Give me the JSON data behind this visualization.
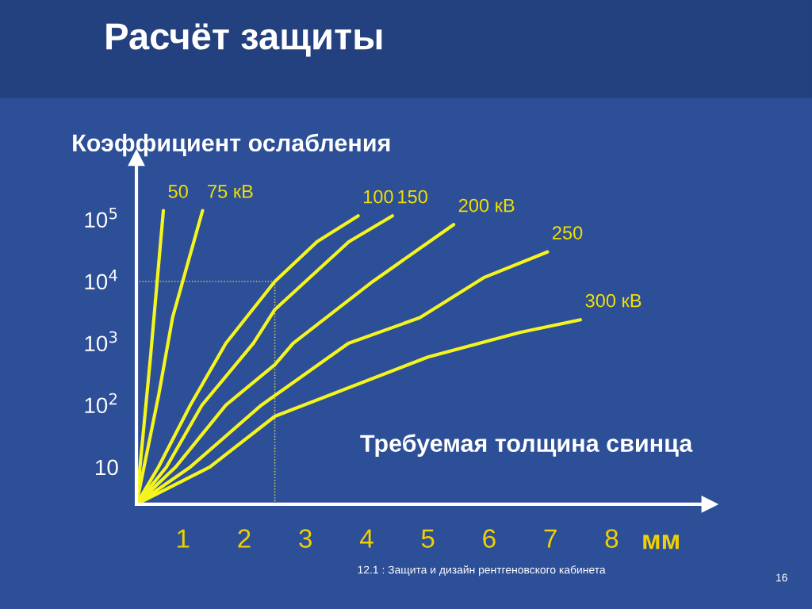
{
  "chart_data": {
    "type": "line",
    "title": "Расчёт защиты",
    "ylabel": "Коэффициент ослабления",
    "xlabel": "Требуемая толщина свинца",
    "log": "y",
    "xlim": [
      0.24,
      9.6
    ],
    "ylim": [
      2.5,
      1000000
    ],
    "xticks": [
      1,
      2,
      3,
      4,
      5,
      6,
      7,
      8
    ],
    "yticks": [
      10,
      {
        "value": 100,
        "label": "10$^{2}$"
      },
      {
        "value": 1000,
        "label": "10$^{3}$"
      },
      {
        "value": 10000,
        "label": "10$^{4}$"
      },
      {
        "value": 100000,
        "label": "10$^{5}$"
      }
    ],
    "grid": false,
    "line_style": "solid",
    "marker": "none",
    "ref_lines": [
      {
        "axis": "x",
        "value": 2.5,
        "color": "#e8e060",
        "line_style": "dotted"
      },
      {
        "axis": "y",
        "value": 10000,
        "color": "#e8e060",
        "line_style": "dotted"
      }
    ],
    "series": [
      {
        "name": "50",
        "color": "#f5f51e",
        "x": [
          0.24,
          0.47,
          0.68
        ],
        "values": [
          2.5,
          600,
          140000
        ]
      },
      {
        "name": "75 кВ",
        "color": "#f5f51e",
        "x": [
          0.24,
          0.6,
          0.83,
          1.32
        ],
        "values": [
          2.5,
          140,
          2600,
          140000
        ]
      },
      {
        "name": "100",
        "color": "#f5f51e",
        "x": [
          0.24,
          0.6,
          1.12,
          1.7,
          2.5,
          3.19,
          3.86
        ],
        "values": [
          2.5,
          10,
          100,
          1000,
          10000,
          44000,
          115000
        ]
      },
      {
        "name": "150",
        "color": "#f5f51e",
        "x": [
          0.24,
          0.73,
          1.31,
          2.15,
          2.5,
          3.0,
          3.71,
          4.42
        ],
        "values": [
          2.5,
          10,
          100,
          1000,
          3500,
          10000,
          44000,
          115000
        ]
      },
      {
        "name": "200 кВ",
        "color": "#f5f51e",
        "x": [
          0.24,
          0.88,
          1.7,
          2.5,
          2.8,
          4.1,
          5.42
        ],
        "values": [
          2.5,
          10,
          100,
          450,
          1000,
          10000,
          83000
        ]
      },
      {
        "name": "250",
        "color": "#f5f51e",
        "x": [
          0.24,
          1.12,
          2.28,
          3.7,
          4.87,
          5.91,
          6.95
        ],
        "values": [
          2.5,
          10,
          100,
          1000,
          2600,
          11500,
          30000
        ]
      },
      {
        "name": "300 кВ",
        "color": "#f5f51e",
        "x": [
          0.24,
          1.44,
          2.5,
          5.0,
          6.5,
          7.49
        ],
        "values": [
          2.5,
          10,
          66,
          600,
          1500,
          2400
        ]
      }
    ],
    "annotations": [
      "мм",
      "12.1 : Защита и дизайн рентгеновского кабинета",
      "16"
    ]
  }
}
